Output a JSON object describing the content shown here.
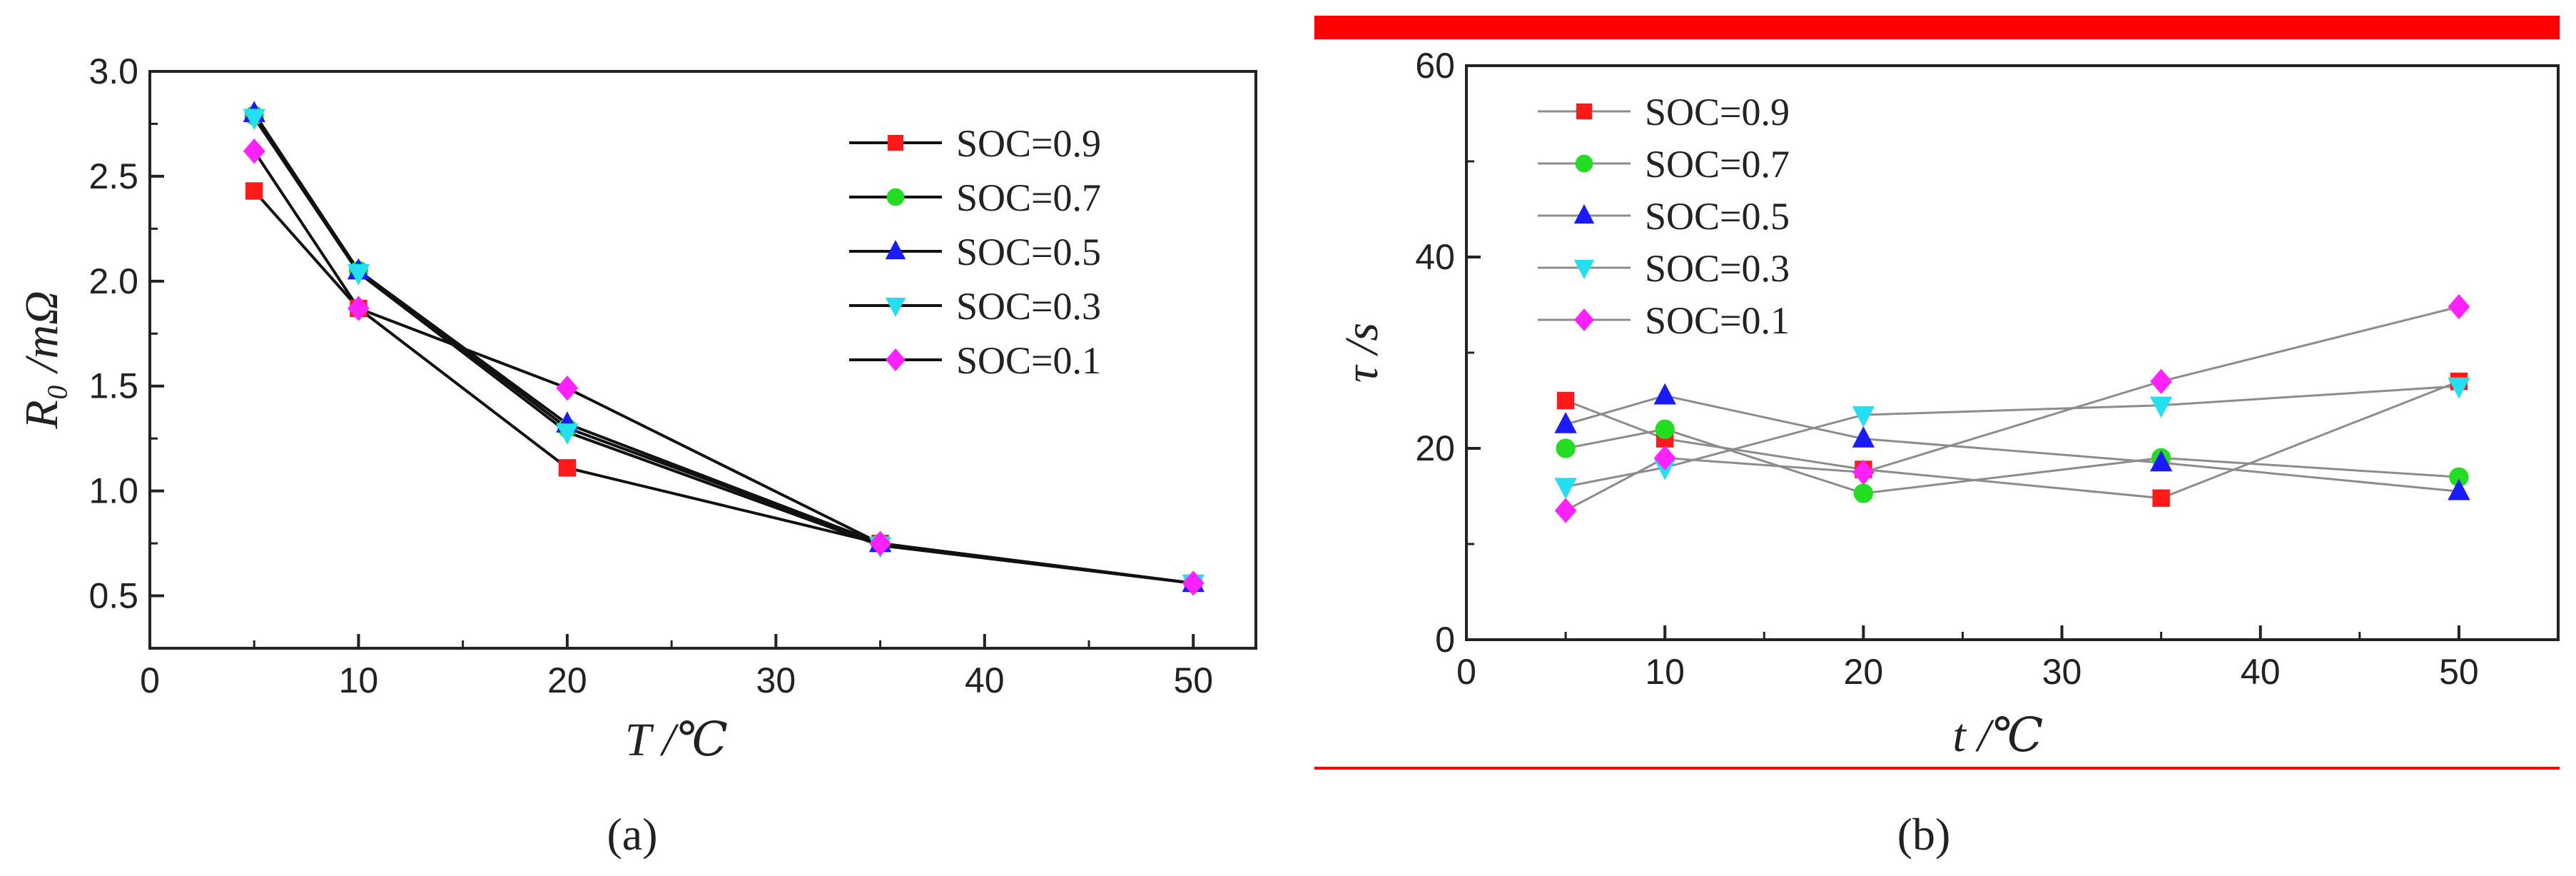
{
  "chart_data": [
    {
      "panel": "a",
      "type": "line",
      "panel_label": "(a)",
      "xlabel": "T /℃",
      "ylabel": "R₀ /mΩ",
      "xlim": [
        0,
        53
      ],
      "ylim": [
        0.25,
        3.0
      ],
      "xticks": [
        0,
        10,
        20,
        30,
        40,
        50
      ],
      "xtick_labels": [
        "0",
        "10",
        "20",
        "30",
        "40",
        "50"
      ],
      "yticks": [
        0.5,
        1.0,
        1.5,
        2.0,
        2.5,
        3.0
      ],
      "ytick_labels": [
        "0.5",
        "1.0",
        "1.5",
        "2.0",
        "2.5",
        "3.0"
      ],
      "line_color": "#111111",
      "legend_position": "top-right",
      "x": [
        5,
        10,
        20,
        35,
        50
      ],
      "series": [
        {
          "name": "SOC=0.9",
          "marker": "square",
          "color": "#ff1a1a",
          "values": [
            2.43,
            1.87,
            1.11,
            0.75,
            0.56
          ]
        },
        {
          "name": "SOC=0.7",
          "marker": "circle",
          "color": "#22dd22",
          "values": [
            2.79,
            2.05,
            1.3,
            0.75,
            0.56
          ]
        },
        {
          "name": "SOC=0.5",
          "marker": "triangle-up",
          "color": "#1a1aff",
          "values": [
            2.8,
            2.05,
            1.32,
            0.75,
            0.56
          ]
        },
        {
          "name": "SOC=0.3",
          "marker": "triangle-down",
          "color": "#22e0f0",
          "values": [
            2.78,
            2.04,
            1.28,
            0.74,
            0.56
          ]
        },
        {
          "name": "SOC=0.1",
          "marker": "diamond",
          "color": "#ff22ff",
          "values": [
            2.62,
            1.87,
            1.49,
            0.75,
            0.56
          ]
        }
      ]
    },
    {
      "panel": "b",
      "type": "line",
      "panel_label": "(b)",
      "xlabel": "t /℃",
      "ylabel": "τ /s",
      "xlim": [
        0,
        55
      ],
      "ylim": [
        0,
        60
      ],
      "xticks": [
        0,
        10,
        20,
        30,
        40,
        50
      ],
      "xtick_labels": [
        "0",
        "10",
        "20",
        "30",
        "40",
        "50"
      ],
      "yticks": [
        0,
        20,
        40,
        60
      ],
      "ytick_labels": [
        "0",
        "20",
        "40",
        "60"
      ],
      "line_color": "#8c8c8c",
      "accent_color": "#ff0000",
      "legend_position": "top-left",
      "x": [
        5,
        10,
        20,
        35,
        50
      ],
      "series": [
        {
          "name": "SOC=0.9",
          "marker": "square",
          "color": "#ff1a1a",
          "values": [
            25.0,
            21.0,
            17.8,
            14.8,
            27.0
          ]
        },
        {
          "name": "SOC=0.7",
          "marker": "circle",
          "color": "#22dd22",
          "values": [
            20.0,
            22.0,
            15.3,
            19.0,
            17.0
          ]
        },
        {
          "name": "SOC=0.5",
          "marker": "triangle-up",
          "color": "#1a1aff",
          "values": [
            22.5,
            25.5,
            21.0,
            18.5,
            15.5
          ]
        },
        {
          "name": "SOC=0.3",
          "marker": "triangle-down",
          "color": "#22e0f0",
          "values": [
            16.0,
            18.0,
            23.5,
            24.5,
            26.5
          ]
        },
        {
          "name": "SOC=0.1",
          "marker": "diamond",
          "color": "#ff22ff",
          "values": [
            13.5,
            19.0,
            17.5,
            27.0,
            34.8
          ]
        }
      ]
    }
  ]
}
